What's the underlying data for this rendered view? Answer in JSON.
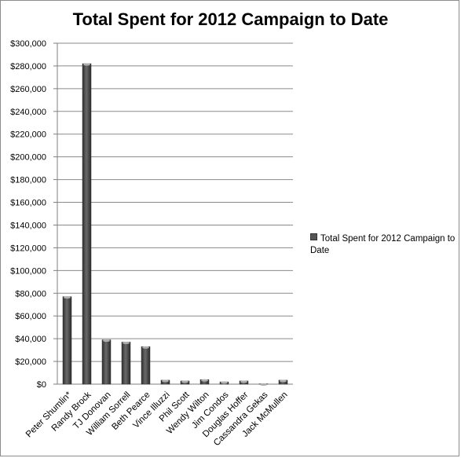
{
  "chart_data": {
    "type": "bar",
    "title": "Total Spent for 2012 Campaign to Date",
    "categories": [
      "Peter Shumlin*",
      "Randy Brock",
      "TJ Donovan",
      "William Sorrell",
      "Beth Pearce",
      "Vince Illuzzi",
      "Phil Scott",
      "Wendy Wilton",
      "Jim Condos",
      "Douglas Hoffer",
      "Cassandra Gekas",
      "Jack McMullen"
    ],
    "series": [
      {
        "name": "Total Spent for 2012 Campaign to Date",
        "values": [
          77000,
          282000,
          39000,
          37000,
          33000,
          3500,
          2800,
          4000,
          2000,
          2800,
          300,
          3500
        ]
      }
    ],
    "ylim": [
      0,
      300000
    ],
    "ytick_step": 20000,
    "ytick_labels": [
      "$0",
      "$20,000",
      "$40,000",
      "$60,000",
      "$80,000",
      "$100,000",
      "$120,000",
      "$140,000",
      "$160,000",
      "$180,000",
      "$200,000",
      "$220,000",
      "$240,000",
      "$260,000",
      "$280,000",
      "$300,000"
    ],
    "grid": true,
    "legend_position": "right",
    "bar_color": "#4d4d4d"
  }
}
